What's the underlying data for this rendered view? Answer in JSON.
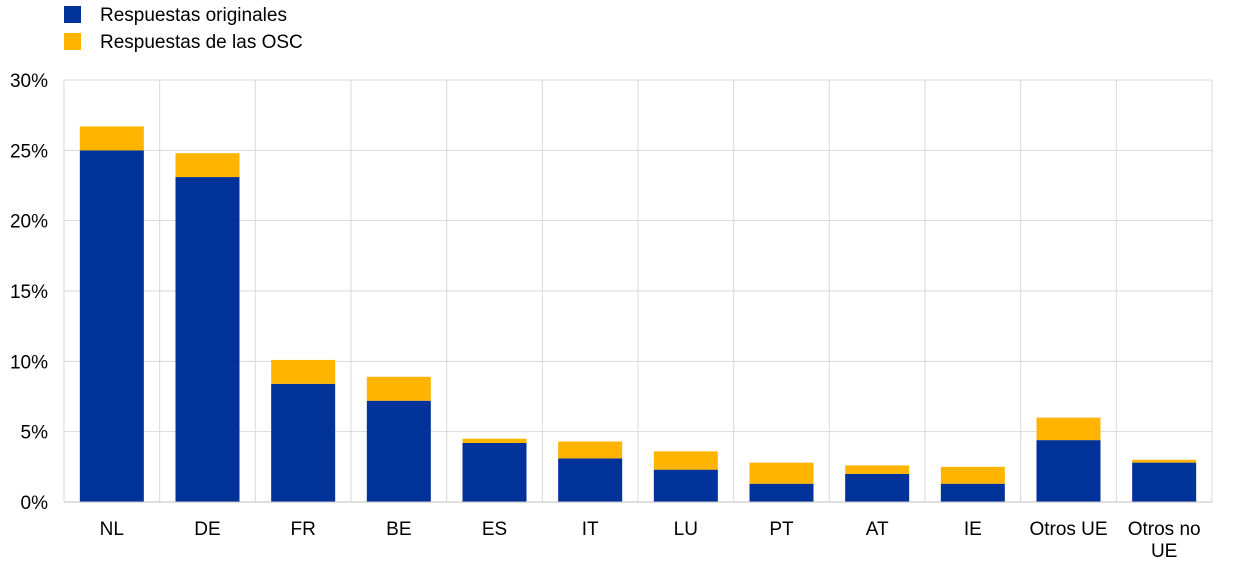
{
  "chart_data": {
    "type": "bar",
    "stacked": true,
    "title": "",
    "xlabel": "",
    "ylabel": "",
    "ylim": [
      0,
      30
    ],
    "yticks": [
      0,
      5,
      10,
      15,
      20,
      25,
      30
    ],
    "ytick_labels": [
      "0%",
      "5%",
      "10%",
      "15%",
      "20%",
      "25%",
      "30%"
    ],
    "grid": true,
    "legend_position": "top-left",
    "categories": [
      "NL",
      "DE",
      "FR",
      "BE",
      "ES",
      "IT",
      "LU",
      "PT",
      "AT",
      "IE",
      "Otros UE",
      "Otros no UE"
    ],
    "series": [
      {
        "name": "Respuestas originales",
        "color": "#003299",
        "values": [
          25.0,
          23.1,
          8.4,
          7.2,
          4.2,
          3.1,
          2.3,
          1.3,
          2.0,
          1.3,
          4.4,
          2.8
        ]
      },
      {
        "name": "Respuestas de las OSC",
        "color": "#FFB400",
        "values": [
          1.7,
          1.7,
          1.7,
          1.7,
          0.3,
          1.2,
          1.3,
          1.5,
          0.6,
          1.2,
          1.6,
          0.2
        ]
      }
    ]
  }
}
